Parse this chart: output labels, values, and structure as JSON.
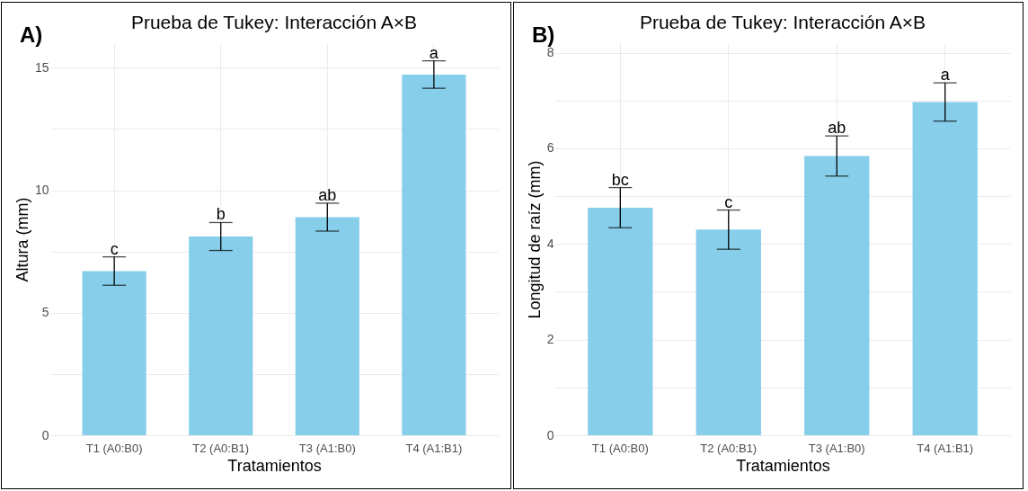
{
  "chart_data": [
    {
      "type": "bar",
      "title": "Prueba de Tukey: Interacción A×B",
      "xlabel": "Tratamientos",
      "ylabel": "Altura (mm)",
      "categories": [
        "T1 (A0:B0)",
        "T2 (A0:B1)",
        "T3 (A1:B0)",
        "T4 (A1:B1)"
      ],
      "values": [
        6.7,
        8.11,
        8.9,
        14.72
      ],
      "errors": [
        0.58,
        0.57,
        0.57,
        0.56
      ],
      "color": "#87ceeb",
      "ylim": [
        0,
        16
      ],
      "yticks": [
        0,
        {
          "value": 2.5,
          "label": null
        },
        5,
        {
          "value": 7.5,
          "label": null
        },
        10,
        {
          "value": 12.5,
          "label": null
        },
        15
      ],
      "grid": true,
      "annotations": [
        "A)",
        {
          "text": "c",
          "x": "T1 (A0:B0)",
          "y": 7.28
        },
        {
          "text": "b",
          "x": "T2 (A0:B1)",
          "y": 8.68
        },
        {
          "text": "ab",
          "x": "T3 (A1:B0)",
          "y": 9.47
        },
        {
          "text": "a",
          "x": "T4 (A1:B1)",
          "y": 15.28
        }
      ]
    },
    {
      "type": "bar",
      "title": "Prueba de Tukey: Interacción A×B",
      "xlabel": "Tratamientos",
      "ylabel": "Longitud de raíz (mm)",
      "categories": [
        "T1 (A0:B0)",
        "T2 (A0:B1)",
        "T3 (A1:B0)",
        "T4 (A1:B1)"
      ],
      "values": [
        4.76,
        4.3,
        5.84,
        6.97
      ],
      "errors": [
        0.42,
        0.41,
        0.42,
        0.4
      ],
      "color": "#87ceeb",
      "ylim": [
        0,
        8.2
      ],
      "yticks": [
        0,
        {
          "value": 1,
          "label": null
        },
        2,
        {
          "value": 3,
          "label": null
        },
        4,
        {
          "value": 5,
          "label": null
        },
        6,
        {
          "value": 7,
          "label": null
        },
        8
      ],
      "grid": true,
      "annotations": [
        "B)",
        {
          "text": "bc",
          "x": "T1 (A0:B0)",
          "y": 5.18
        },
        {
          "text": "c",
          "x": "T2 (A0:B1)",
          "y": 4.71
        },
        {
          "text": "ab",
          "x": "T3 (A1:B0)",
          "y": 6.26
        },
        {
          "text": "a",
          "x": "T4 (A1:B1)",
          "y": 7.37
        }
      ]
    }
  ]
}
